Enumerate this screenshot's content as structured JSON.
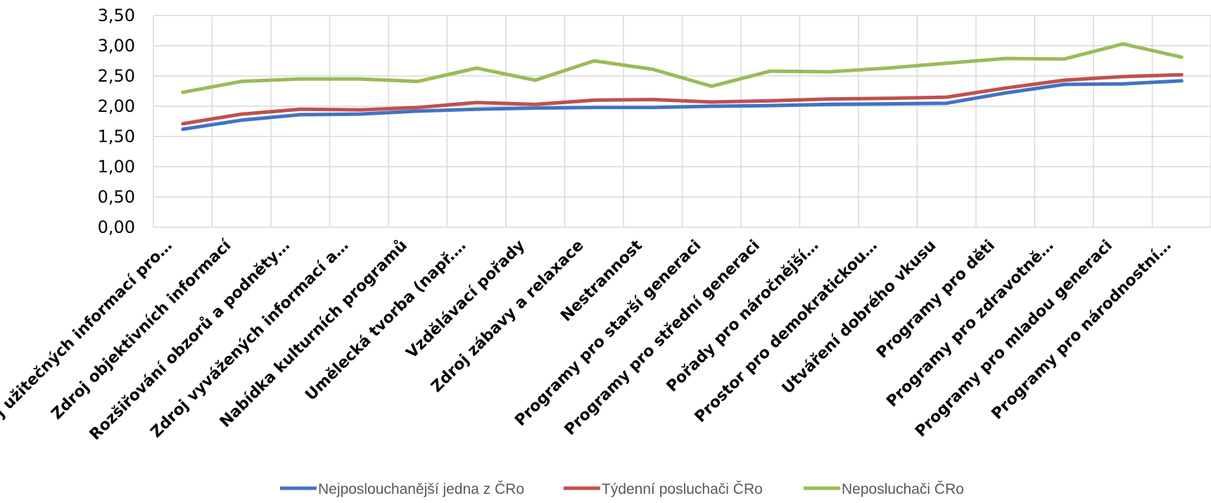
{
  "chart_data": {
    "type": "line",
    "ylim": [
      0,
      3.5
    ],
    "y_ticks": [
      "0,00",
      "0,50",
      "1,00",
      "1,50",
      "2,00",
      "2,50",
      "3,00",
      "3,50"
    ],
    "grid": true,
    "legend_position": "bottom",
    "categories": [
      "Zdroj užitečných informací pro…",
      "Zdroj objektivních informací",
      "Rozšiřování obzorů a podněty…",
      "Zdroj vyvážených informací a…",
      "Nabídka kulturních programů",
      "Umělecká tvorba (např.…",
      "Vzdělávací pořady",
      "Zdroj zábavy a relaxace",
      "Nestrannost",
      "Programy pro starší generaci",
      "Programy pro střední generaci",
      "Pořady pro náročnější…",
      "Prostor pro demokratickou…",
      "Utváření dobrého vkusu",
      "Programy pro děti",
      "Programy pro zdravotně…",
      "Programy pro mladou generaci",
      "Programy pro národnostní…"
    ],
    "series": [
      {
        "name": "Nejposlouchanější jedna z ČRo",
        "color": "#4472C4",
        "values": [
          1.62,
          1.77,
          1.86,
          1.87,
          1.92,
          1.95,
          1.97,
          1.98,
          1.98,
          2.0,
          2.01,
          2.03,
          2.04,
          2.05,
          2.22,
          2.36,
          2.37,
          2.42
        ]
      },
      {
        "name": "Týdenní posluchači ČRo",
        "color": "#C0504D",
        "values": [
          1.71,
          1.87,
          1.95,
          1.94,
          1.98,
          2.06,
          2.03,
          2.1,
          2.11,
          2.07,
          2.09,
          2.12,
          2.13,
          2.15,
          2.3,
          2.43,
          2.49,
          2.52
        ]
      },
      {
        "name": "Neposluchači ČRo",
        "color": "#9BBB59",
        "values": [
          2.23,
          2.41,
          2.45,
          2.45,
          2.41,
          2.63,
          2.43,
          2.75,
          2.61,
          2.33,
          2.58,
          2.57,
          2.63,
          2.71,
          2.79,
          2.78,
          3.03,
          2.81
        ]
      }
    ]
  }
}
